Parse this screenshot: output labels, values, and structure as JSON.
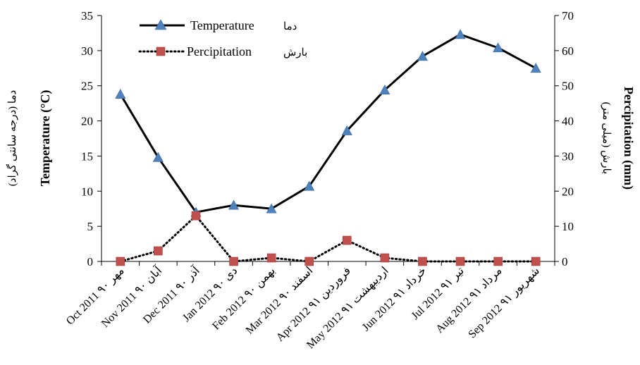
{
  "chart_data": {
    "type": "line",
    "categories": [
      "Oct 2011 مهر ۹۰",
      "Nov 2011 آبان ۹۰",
      "Dec 2011 آذر ۹۰",
      "Jan 2012 دی ۹۰",
      "Feb 2012 بهمن ۹۰",
      "Mar 2012 اسفند ۹۰",
      "Apr 2012 فروردین ۹۱",
      "May 2012 اردیبهشت ۹۱",
      "Jun 2012 خرداد ۹۱",
      "Jul 2012 تیر ۹۱",
      "Aug 2012 مرداد ۹۱",
      "Sep 2012 شهریور ۹۱"
    ],
    "series": [
      {
        "name": "Temperature",
        "name_fa": "دما",
        "axis": "left",
        "marker": "triangle",
        "line": "solid",
        "color": "#000000",
        "marker_color": "#4f81bd",
        "values": [
          23.8,
          14.8,
          7.0,
          8.0,
          7.5,
          10.7,
          18.6,
          24.4,
          29.2,
          32.3,
          30.4,
          27.5
        ]
      },
      {
        "name": "Percipitation",
        "name_fa": "بارش",
        "axis": "right",
        "marker": "square",
        "line": "dotted",
        "color": "#000000",
        "marker_color": "#c0504d",
        "values": [
          0,
          3,
          13,
          0,
          1,
          0,
          6,
          1,
          0,
          0,
          0,
          0
        ]
      }
    ],
    "y_left": {
      "label": "Temperature (°C)",
      "label_fa": "دما (درجه سانتی گراد)",
      "ylim": [
        0,
        35
      ],
      "ticks": [
        0,
        5,
        10,
        15,
        20,
        25,
        30,
        35
      ]
    },
    "y_right": {
      "label": "Percipitation (mm)",
      "label_fa": "بارش (میلی متر)",
      "ylim": [
        0,
        70
      ],
      "ticks": [
        0,
        10,
        20,
        30,
        40,
        50,
        60,
        70
      ]
    },
    "grid": false,
    "legend_position": "top-left"
  }
}
